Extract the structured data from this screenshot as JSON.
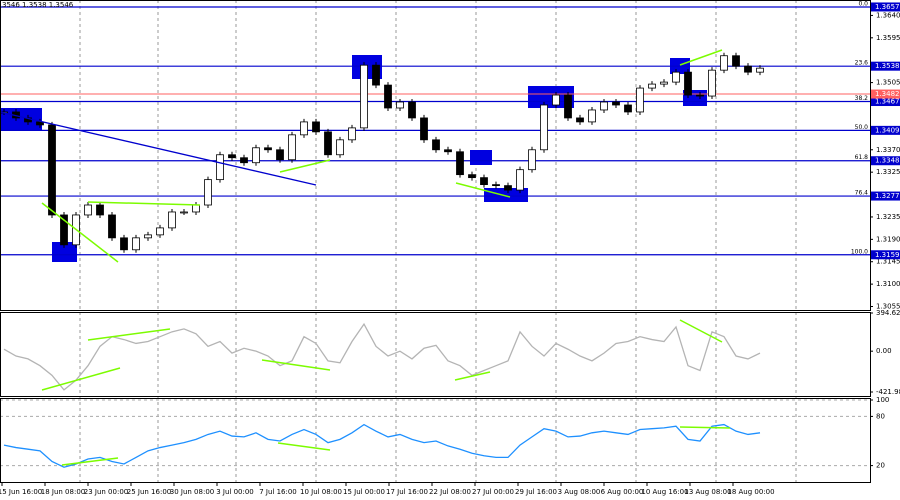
{
  "chart_data": [
    {
      "type": "candlestick",
      "header": "3546 1.3538 1.3546",
      "values": [
        1.3446,
        1.3434,
        1.3426,
        1.342,
        1.3239,
        1.3179,
        1.3239,
        1.3259,
        1.3239,
        1.3193,
        1.3169,
        1.3193,
        1.3199,
        1.3213,
        1.3245,
        1.3245,
        1.3259,
        1.331,
        1.336,
        1.3354,
        1.3344,
        1.3374,
        1.337,
        1.335,
        1.34,
        1.3426,
        1.3406,
        1.336,
        1.339,
        1.3414,
        1.354,
        1.35,
        1.3454,
        1.3466,
        1.3434,
        1.339,
        1.337,
        1.3366,
        1.332,
        1.3314,
        1.33,
        1.3298,
        1.3289,
        1.333,
        1.337,
        1.346,
        1.348,
        1.3434,
        1.3426,
        1.345,
        1.3466,
        1.346,
        1.3446,
        1.3494,
        1.3502,
        1.3506,
        1.3526,
        1.348,
        1.3478,
        1.353,
        1.3559,
        1.3538,
        1.3526,
        1.3534
      ],
      "ylim": [
        1.3048,
        1.3671
      ],
      "yticks": [
        {
          "value": 1.364,
          "label": "1.3640"
        },
        1.3595,
        1.3505,
        {
          "value": 1.337,
          "label": "1.3370"
        },
        1.3325,
        1.3235,
        {
          "value": 1.319,
          "label": "1.3190"
        },
        1.3145,
        {
          "value": 1.31,
          "label": "1.3100"
        },
        1.3055
      ],
      "fib_levels": [
        {
          "ratio": "0.0",
          "price": 1.3657
        },
        {
          "ratio": "23.6",
          "price": 1.3538
        },
        {
          "ratio": "38.2",
          "price": 1.3467
        },
        {
          "ratio": "50.0",
          "price": 1.3409
        },
        {
          "ratio": "61.8",
          "price": 1.3348
        },
        {
          "ratio": "76.4",
          "price": 1.3277
        },
        {
          "ratio": "100.0",
          "price": 1.3159
        }
      ],
      "fib_color": "#0000cd",
      "current_price": 1.3482,
      "current_color": "#ff6060",
      "time_labels": [
        "15 Jun 16:00",
        "18 Jun 08:00",
        "23 Jun 00:00",
        "25 Jun 16:00",
        "30 Jun 08:00",
        "3 Jul 00:00",
        "7 Jul 16:00",
        "10 Jul 08:00",
        "15 Jul 00:00",
        "17 Jul 16:00",
        "22 Jul 08:00",
        "27 Jul 00:00",
        "29 Jul 16:00",
        "3 Aug 08:00",
        "6 Aug 00:00",
        "10 Aug 16:00",
        "13 Aug 08:00",
        "18 Aug 00:00"
      ]
    },
    {
      "type": "line",
      "color": "#b4b4b4",
      "values": [
        20,
        -50,
        -80,
        -150,
        -250,
        -400,
        -300,
        -150,
        50,
        150,
        120,
        80,
        100,
        150,
        200,
        230,
        180,
        50,
        100,
        -20,
        30,
        0,
        -50,
        -150,
        -100,
        150,
        80,
        -100,
        -120,
        100,
        280,
        50,
        -50,
        0,
        -80,
        30,
        60,
        -100,
        -150,
        -250,
        -200,
        -150,
        -100,
        200,
        50,
        -50,
        80,
        20,
        -50,
        -100,
        -20,
        80,
        100,
        150,
        120,
        100,
        250,
        -150,
        -200,
        200,
        150,
        -50,
        -80,
        -20
      ],
      "ylim": [
        -421.9874,
        394.6289
      ],
      "yticks": [
        394.6289,
        {
          "value": 0,
          "label": "0.00"
        },
        -421.9874
      ]
    },
    {
      "type": "line",
      "color": "#1e90ff",
      "values": [
        45,
        42,
        40,
        38,
        25,
        18,
        22,
        28,
        30,
        25,
        22,
        30,
        38,
        42,
        45,
        48,
        52,
        58,
        62,
        56,
        55,
        60,
        52,
        50,
        58,
        64,
        58,
        48,
        52,
        60,
        70,
        62,
        55,
        58,
        52,
        48,
        50,
        44,
        40,
        35,
        32,
        30,
        30,
        45,
        55,
        65,
        62,
        55,
        56,
        60,
        62,
        60,
        58,
        64,
        65,
        66,
        68,
        52,
        50,
        68,
        70,
        62,
        58,
        60
      ],
      "ylim": [
        0,
        100
      ],
      "yticks": [
        100,
        80,
        20
      ]
    }
  ]
}
